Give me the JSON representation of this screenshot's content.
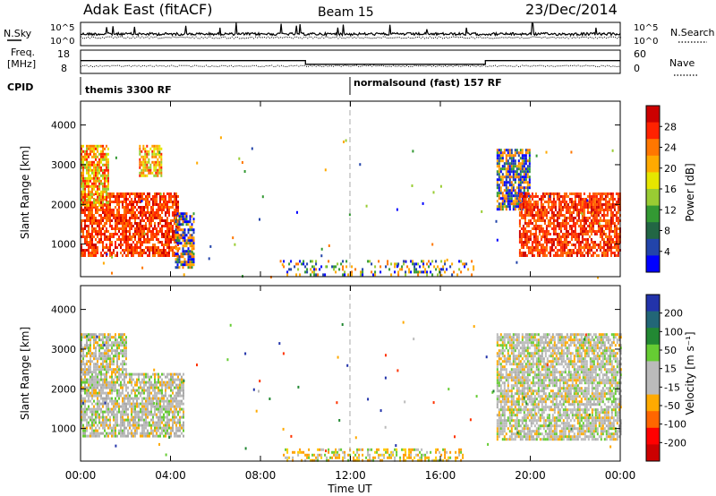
{
  "header": {
    "station": "Adak East (fitACF)",
    "beam": "Beam 15",
    "date": "23/Dec/2014"
  },
  "noise_panel": {
    "left_label": "N.Sky",
    "right_label": "N.Search",
    "left_ticks": [
      "10^5",
      "10^0"
    ],
    "right_ticks": [
      "10^5",
      "10^0"
    ]
  },
  "freq_panel": {
    "left_label_1": "Freq.",
    "left_label_2": "[MHz]",
    "right_label": "Nave",
    "left_ticks": [
      "18",
      "8"
    ],
    "right_ticks": [
      "60",
      "0"
    ],
    "freq_steps": [
      {
        "start_h": 0.0,
        "end_h": 10.0,
        "mhz": 12.6
      },
      {
        "start_h": 10.0,
        "end_h": 18.0,
        "mhz": 10.7
      },
      {
        "start_h": 18.0,
        "end_h": 24.0,
        "mhz": 12.6
      }
    ]
  },
  "cpid_panel": {
    "label": "CPID",
    "segments": [
      {
        "start_h": 0.0,
        "end_h": 12.0,
        "text": "themis 3300 RF"
      },
      {
        "start_h": 12.0,
        "end_h": 24.0,
        "text": "normalsound (fast) 157 RF"
      }
    ]
  },
  "chart_data": [
    {
      "type": "heatmap",
      "name": "power",
      "xlabel": "",
      "ylabel": "Slant Range [km]",
      "xlim_hours": [
        0,
        24
      ],
      "ylim": [
        180,
        4600
      ],
      "yticks": [
        "1000",
        "2000",
        "3000",
        "4000"
      ],
      "colorbar": {
        "label": "Power [dB]",
        "ticks": [
          "28",
          "24",
          "20",
          "16",
          "12",
          "8",
          "4"
        ],
        "colors": [
          "#cc0000",
          "#ff2200",
          "#ff7700",
          "#ffaa00",
          "#e6e600",
          "#99cc33",
          "#339933",
          "#226644",
          "#2244aa",
          "#0000ff"
        ]
      },
      "regions": [
        {
          "start_h": 0.0,
          "end_h": 4.3,
          "range_km": [
            700,
            2300
          ],
          "level": "high"
        },
        {
          "start_h": 0.0,
          "end_h": 1.2,
          "range_km": [
            2000,
            3500
          ],
          "level": "mid"
        },
        {
          "start_h": 2.6,
          "end_h": 3.6,
          "range_km": [
            2700,
            3500
          ],
          "level": "mid"
        },
        {
          "start_h": 4.2,
          "end_h": 5.0,
          "range_km": [
            400,
            1800
          ],
          "level": "low"
        },
        {
          "start_h": 9.0,
          "end_h": 17.5,
          "range_km": [
            200,
            600
          ],
          "level": "scatter"
        },
        {
          "start_h": 18.5,
          "end_h": 20.0,
          "range_km": [
            1900,
            3400
          ],
          "level": "low"
        },
        {
          "start_h": 19.5,
          "end_h": 24.0,
          "range_km": [
            700,
            2300
          ],
          "level": "high"
        }
      ]
    },
    {
      "type": "heatmap",
      "name": "velocity",
      "xlabel": "Time UT",
      "ylabel": "Slant Range [km]",
      "xlim_hours": [
        0,
        24
      ],
      "ylim": [
        180,
        4600
      ],
      "yticks": [
        "1000",
        "2000",
        "3000",
        "4000"
      ],
      "xticks": [
        "00:00",
        "04:00",
        "08:00",
        "12:00",
        "16:00",
        "20:00",
        "00:00"
      ],
      "colorbar": {
        "label": "Velocity [m s⁻¹]",
        "ticks": [
          "200",
          "100",
          "50",
          "15",
          "-15",
          "-50",
          "-100",
          "-200"
        ],
        "colors": [
          "#2233aa",
          "#226677",
          "#228833",
          "#66cc33",
          "#bbbbbb",
          "#bbbbbb",
          "#ffaa00",
          "#ff6600",
          "#ff0000",
          "#cc0000"
        ]
      },
      "regions": [
        {
          "start_h": 0.0,
          "end_h": 4.6,
          "range_km": [
            800,
            2400
          ],
          "level": "ground"
        },
        {
          "start_h": 0.0,
          "end_h": 2.0,
          "range_km": [
            2400,
            3400
          ],
          "level": "ground"
        },
        {
          "start_h": 9.0,
          "end_h": 17.0,
          "range_km": [
            200,
            500
          ],
          "level": "negative"
        },
        {
          "start_h": 18.5,
          "end_h": 24.0,
          "range_km": [
            700,
            3400
          ],
          "level": "ground"
        }
      ]
    }
  ]
}
